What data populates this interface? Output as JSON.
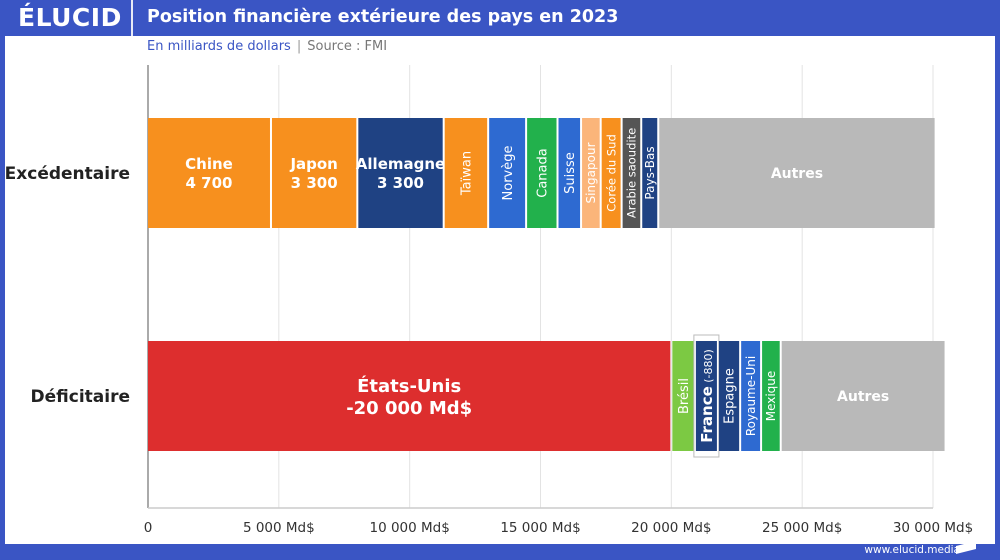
{
  "header": {
    "logo": "ÉLUCID",
    "title": "Position financière extérieure des pays en 2023"
  },
  "subtitle": {
    "unit": "En milliards de dollars",
    "separator": "|",
    "source": "Source : FMI"
  },
  "footer": {
    "url": "www.elucid.media"
  },
  "chart_data": {
    "type": "stacked-bar-horizontal",
    "xlim": [
      0,
      30000
    ],
    "x_ticks": [
      {
        "value": 0,
        "label": "0"
      },
      {
        "value": 5000,
        "label": "5 000 Md$"
      },
      {
        "value": 10000,
        "label": "10 000 Md$"
      },
      {
        "value": 15000,
        "label": "15 000 Md$"
      },
      {
        "value": 20000,
        "label": "20 000 Md$"
      },
      {
        "value": 25000,
        "label": "25 000 Md$"
      },
      {
        "value": 30000,
        "label": "30 000 Md$"
      }
    ],
    "grid": true,
    "rows": [
      {
        "label": "Excédentaire",
        "segments": [
          {
            "name": "Chine",
            "value": 4700,
            "value_label": "4 700",
            "color": "#f7901e",
            "orientation": "horizontal"
          },
          {
            "name": "Japon",
            "value": 3300,
            "value_label": "3 300",
            "color": "#f7901e",
            "orientation": "horizontal"
          },
          {
            "name": "Allemagne",
            "value": 3300,
            "value_label": "3 300",
            "color": "#1f4283",
            "orientation": "horizontal"
          },
          {
            "name": "Taïwan",
            "value": 1700,
            "color": "#f7901e",
            "orientation": "vertical"
          },
          {
            "name": "Norvège",
            "value": 1450,
            "color": "#2e6ad1",
            "orientation": "vertical"
          },
          {
            "name": "Canada",
            "value": 1200,
            "color": "#22b14c",
            "orientation": "vertical"
          },
          {
            "name": "Suisse",
            "value": 900,
            "color": "#2e6ad1",
            "orientation": "vertical"
          },
          {
            "name": "Singapour",
            "value": 750,
            "color": "#fbb57a",
            "orientation": "vertical"
          },
          {
            "name": "Corée du Sud",
            "value": 800,
            "color": "#f7901e",
            "orientation": "vertical"
          },
          {
            "name": "Arabie saoudite",
            "value": 750,
            "color": "#555555",
            "orientation": "vertical"
          },
          {
            "name": "Pays-Bas",
            "value": 650,
            "color": "#1f4283",
            "orientation": "vertical"
          },
          {
            "name": "Autres",
            "value": 10600,
            "color": "#b9b9b9",
            "orientation": "horizontal"
          }
        ]
      },
      {
        "label": "Déficitaire",
        "segments": [
          {
            "name": "États-Unis",
            "value": 20000,
            "value_label": "-20 000 Md$",
            "color": "#dd2e2e",
            "orientation": "horizontal"
          },
          {
            "name": "Brésil",
            "value": 900,
            "color": "#7cc943",
            "orientation": "vertical"
          },
          {
            "name": "France",
            "value": 880,
            "value_label": "(-880)",
            "color": "#1f4283",
            "orientation": "vertical",
            "highlight": true
          },
          {
            "name": "Espagne",
            "value": 850,
            "color": "#1f4283",
            "orientation": "vertical"
          },
          {
            "name": "Royaume-Uni",
            "value": 800,
            "color": "#2e6ad1",
            "orientation": "vertical"
          },
          {
            "name": "Mexique",
            "value": 750,
            "color": "#22b14c",
            "orientation": "vertical"
          },
          {
            "name": "Autres",
            "value": 6300,
            "color": "#b9b9b9",
            "orientation": "horizontal"
          }
        ]
      }
    ]
  }
}
